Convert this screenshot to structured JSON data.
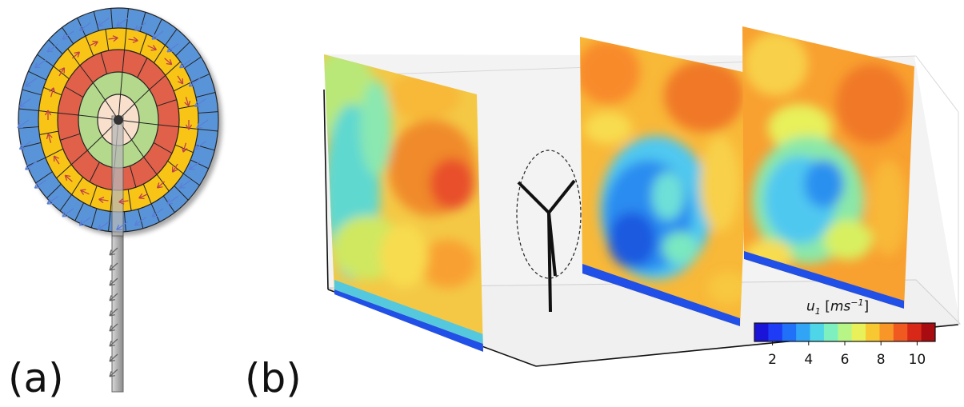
{
  "panel_a": {
    "label": "(a)"
  },
  "panel_b": {
    "label": "(b)"
  },
  "colorbar": {
    "var": "u",
    "sub": "1",
    "unit_open": "[",
    "unit": "ms",
    "unit_exp": "−1",
    "unit_close": "]",
    "ticks": [
      "2",
      "4",
      "6",
      "8",
      "10"
    ],
    "range": [
      1,
      11
    ],
    "colormap": "jet",
    "colors": [
      "#1a14d8",
      "#1e3cf5",
      "#2070f8",
      "#32a4f5",
      "#4ed6e8",
      "#7ef0c0",
      "#b6f586",
      "#e8f05a",
      "#f8c832",
      "#f89628",
      "#f05a20",
      "#d82818",
      "#a80c10"
    ]
  },
  "rotor_rings": [
    "#f8e0cc",
    "#b4d98c",
    "#e0614a",
    "#f8c418",
    "#5a94d8"
  ]
}
